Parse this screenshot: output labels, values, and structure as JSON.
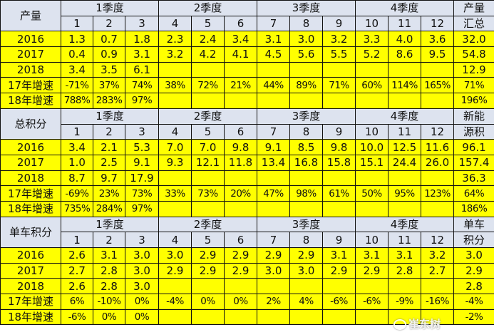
{
  "quarters": [
    "1季度",
    "2季度",
    "3季度",
    "4季度"
  ],
  "months": [
    "1",
    "2",
    "3",
    "4",
    "5",
    "6",
    "7",
    "8",
    "9",
    "10",
    "11",
    "12"
  ],
  "colors": {
    "header_bg": "#dde3ef",
    "data_bg": "#ffff00",
    "border": "#111111"
  },
  "sections": [
    {
      "title": "产量",
      "total_header": [
        "产量",
        "汇总"
      ],
      "rows": [
        {
          "label": "2016",
          "values": [
            "1.3",
            "0.7",
            "1.8",
            "2.3",
            "2.4",
            "3.4",
            "3.1",
            "3.0",
            "3.2",
            "3.3",
            "4.0",
            "3.6"
          ],
          "total": "32.0"
        },
        {
          "label": "2017",
          "values": [
            "0.4",
            "0.9",
            "3.1",
            "3.2",
            "4.2",
            "4.1",
            "4.5",
            "5.6",
            "5.5",
            "5.2",
            "8.6",
            "9.5"
          ],
          "total": "54.8"
        },
        {
          "label": "2018",
          "values": [
            "3.4",
            "3.5",
            "6.1",
            "",
            "",
            "",
            "",
            "",
            "",
            "",
            "",
            ""
          ],
          "total": "12.9"
        },
        {
          "label": "17年增速",
          "values": [
            "-71%",
            "37%",
            "74%",
            "38%",
            "72%",
            "21%",
            "44%",
            "89%",
            "71%",
            "60%",
            "114%",
            "165%"
          ],
          "total": "71%"
        },
        {
          "label": "18年增速",
          "values": [
            "788%",
            "283%",
            "97%",
            "",
            "",
            "",
            "",
            "",
            "",
            "",
            "",
            ""
          ],
          "total": "196%"
        }
      ]
    },
    {
      "title": "总积分",
      "total_header": [
        "新能",
        "源积"
      ],
      "rows": [
        {
          "label": "2016",
          "values": [
            "3.4",
            "2.1",
            "5.3",
            "7.0",
            "7.0",
            "9.8",
            "9.1",
            "8.5",
            "9.8",
            "10.0",
            "12.5",
            "11.6"
          ],
          "total": "96.1"
        },
        {
          "label": "2017",
          "values": [
            "1.0",
            "2.5",
            "9.1",
            "9.3",
            "12.1",
            "11.8",
            "13.4",
            "16.8",
            "15.8",
            "15.1",
            "24.4",
            "26.0"
          ],
          "total": "157.4"
        },
        {
          "label": "2018",
          "values": [
            "8.7",
            "9.7",
            "17.9",
            "",
            "",
            "",
            "",
            "",
            "",
            "",
            "",
            ""
          ],
          "total": "36.3"
        },
        {
          "label": "17年增速",
          "values": [
            "-69%",
            "23%",
            "73%",
            "33%",
            "73%",
            "20%",
            "47%",
            "98%",
            "61%",
            "50%",
            "95%",
            "123%"
          ],
          "total": "64%"
        },
        {
          "label": "18年增速",
          "values": [
            "735%",
            "284%",
            "97%",
            "",
            "",
            "",
            "",
            "",
            "",
            "",
            "",
            ""
          ],
          "total": "186%"
        }
      ]
    },
    {
      "title": "单车积分",
      "total_header": [
        "单车",
        "积分"
      ],
      "rows": [
        {
          "label": "2016",
          "values": [
            "2.6",
            "3.1",
            "3.0",
            "3.0",
            "2.9",
            "2.9",
            "2.9",
            "2.9",
            "3.1",
            "3.1",
            "3.1",
            "3.2"
          ],
          "total": "3.0"
        },
        {
          "label": "2017",
          "values": [
            "2.7",
            "2.8",
            "3.0",
            "2.9",
            "2.9",
            "2.9",
            "3.0",
            "3.0",
            "2.9",
            "2.9",
            "2.8",
            "2.7"
          ],
          "total": "2.9"
        },
        {
          "label": "2018",
          "values": [
            "2.6",
            "2.8",
            "3.0",
            "",
            "",
            "",
            "",
            "",
            "",
            "",
            "",
            ""
          ],
          "total": "2.8"
        },
        {
          "label": "17年增速",
          "values": [
            "6%",
            "-10%",
            "0%",
            "-4%",
            "0%",
            "0%",
            "2%",
            "4%",
            "-6%",
            "-6%",
            "-9%",
            "-16%"
          ],
          "total": "-4%"
        },
        {
          "label": "18年增速",
          "values": [
            "-6%",
            "0%",
            "0%",
            "",
            "",
            "",
            "",
            "",
            "",
            "",
            "",
            ""
          ],
          "total": "-2%"
        }
      ]
    }
  ],
  "watermark": "崔东树"
}
